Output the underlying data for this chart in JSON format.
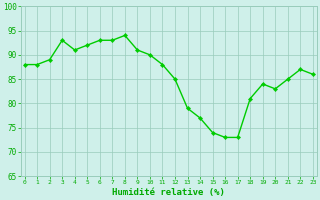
{
  "x": [
    0,
    1,
    2,
    3,
    4,
    5,
    6,
    7,
    8,
    9,
    10,
    11,
    12,
    13,
    14,
    15,
    16,
    17,
    18,
    19,
    20,
    21,
    22,
    23
  ],
  "y": [
    88,
    88,
    89,
    93,
    91,
    92,
    93,
    93,
    94,
    91,
    90,
    88,
    85,
    79,
    77,
    74,
    73,
    73,
    81,
    84,
    83,
    85,
    87,
    86
  ],
  "line_color": "#00cc00",
  "marker": "D",
  "marker_size": 2.2,
  "bg_color": "#cff0ea",
  "grid_color": "#99ccbb",
  "xlabel": "Humidité relative (%)",
  "xlabel_color": "#00aa00",
  "tick_color": "#00aa00",
  "ytick_color": "#00aa00",
  "ylim": [
    65,
    100
  ],
  "yticks": [
    65,
    70,
    75,
    80,
    85,
    90,
    95,
    100
  ],
  "xticks": [
    0,
    1,
    2,
    3,
    4,
    5,
    6,
    7,
    8,
    9,
    10,
    11,
    12,
    13,
    14,
    15,
    16,
    17,
    18,
    19,
    20,
    21,
    22,
    23
  ],
  "line_width": 1.0,
  "xtick_fontsize": 4.5,
  "ytick_fontsize": 5.5,
  "xlabel_fontsize": 6.5
}
